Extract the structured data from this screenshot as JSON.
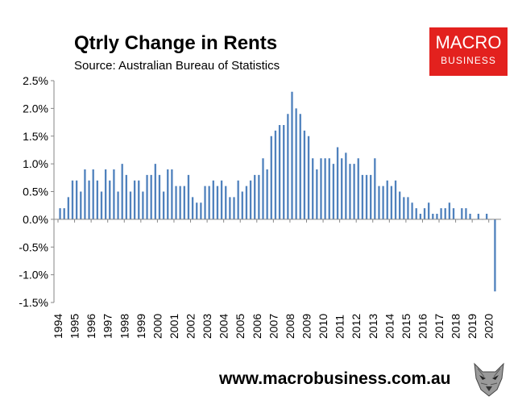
{
  "header": {
    "title": "Qtrly Change in Rents",
    "subtitle": "Source: Australian Bureau of Statistics"
  },
  "logo": {
    "line1": "MACRO",
    "line2": "BUSINESS"
  },
  "footer": {
    "url": "www.macrobusiness.com.au"
  },
  "colors": {
    "bar": "#4f81bd",
    "axis": "#868686",
    "logo_bg": "#e3211e"
  },
  "icons": {
    "footer_icon": "wolf-icon"
  },
  "chart_data": {
    "type": "bar",
    "title": "Qtrly Change in Rents",
    "subtitle": "Source: Australian Bureau of Statistics",
    "x_tick_labels": [
      "1994",
      "1995",
      "1996",
      "1997",
      "1998",
      "1999",
      "2000",
      "2001",
      "2002",
      "2003",
      "2004",
      "2005",
      "2006",
      "2007",
      "2008",
      "2009",
      "2010",
      "2011",
      "2012",
      "2013",
      "2014",
      "2015",
      "2016",
      "2017",
      "2018",
      "2019",
      "2020"
    ],
    "y_tick_labels": [
      "2.5%",
      "2.0%",
      "1.5%",
      "1.0%",
      "0.5%",
      "0.0%",
      "-0.5%",
      "-1.0%",
      "-1.5%"
    ],
    "ylim": [
      -1.5,
      2.5
    ],
    "y_unit": "%",
    "grid": false,
    "legend": "none",
    "x_start": "1994 Q1",
    "x_end": "2020 Q2",
    "values": [
      0.2,
      0.2,
      0.4,
      0.7,
      0.7,
      0.5,
      0.9,
      0.7,
      0.9,
      0.7,
      0.5,
      0.9,
      0.7,
      0.9,
      0.5,
      1.0,
      0.8,
      0.5,
      0.7,
      0.7,
      0.5,
      0.8,
      0.8,
      1.0,
      0.8,
      0.5,
      0.9,
      0.9,
      0.6,
      0.6,
      0.6,
      0.8,
      0.4,
      0.3,
      0.3,
      0.6,
      0.6,
      0.7,
      0.6,
      0.7,
      0.6,
      0.4,
      0.4,
      0.7,
      0.5,
      0.6,
      0.7,
      0.8,
      0.8,
      1.1,
      0.9,
      1.5,
      1.6,
      1.7,
      1.7,
      1.9,
      2.3,
      2.0,
      1.9,
      1.6,
      1.5,
      1.1,
      0.9,
      1.1,
      1.1,
      1.1,
      1.0,
      1.3,
      1.1,
      1.2,
      1.0,
      1.0,
      1.1,
      0.8,
      0.8,
      0.8,
      1.1,
      0.6,
      0.6,
      0.7,
      0.6,
      0.7,
      0.5,
      0.4,
      0.4,
      0.3,
      0.2,
      0.1,
      0.2,
      0.3,
      0.1,
      0.1,
      0.2,
      0.2,
      0.3,
      0.2,
      0.0,
      0.2,
      0.2,
      0.1,
      0.0,
      0.1,
      0.0,
      0.1,
      0.0,
      -1.3
    ]
  }
}
